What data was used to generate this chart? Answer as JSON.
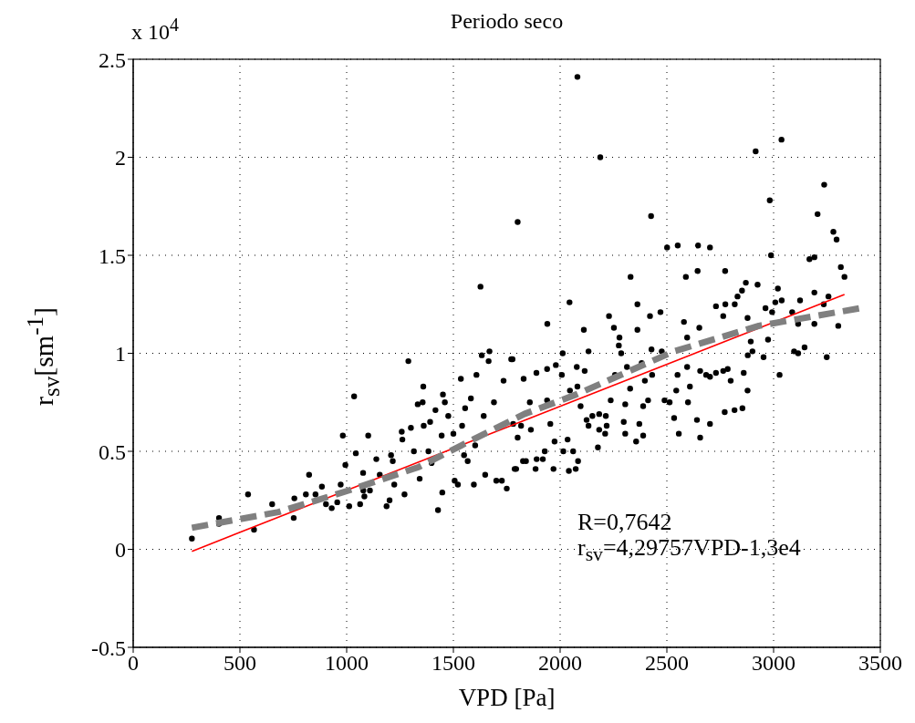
{
  "chart_data": {
    "type": "scatter",
    "title": "Periodo  seco",
    "xlabel": "VPD [Pa]",
    "ylabel": "r$_{sv}$[sm$^{-1}$]",
    "annotations": [
      "x 10$^{4}$",
      "R=0,7642",
      "r$_{sv}$=4,29757VPD-1,3e4"
    ],
    "xlim": [
      0,
      3500
    ],
    "xticks": [
      0,
      500,
      1000,
      1500,
      2000,
      2500,
      3000,
      3500
    ],
    "ylim": [
      -0.5,
      2.5
    ],
    "yticks": [
      -0.5,
      0,
      0.5,
      1,
      1.5,
      2,
      2.5
    ],
    "grid": true,
    "series": [
      {
        "type": "scatter",
        "marker": "circle",
        "color": "#000000",
        "x": [
          275,
          402,
          402,
          538,
          566,
          651,
          752,
          755,
          809,
          824,
          854,
          884,
          903,
          930,
          956,
          972,
          982,
          994,
          1012,
          1035,
          1043,
          1063,
          1077,
          1101,
          1083,
          1109,
          1139,
          1155,
          1187,
          1201,
          1208,
          1223,
          1258,
          1261,
          1271,
          1289,
          1301,
          1315,
          1333,
          1342,
          1356,
          1359,
          1361,
          1391,
          1398,
          1416,
          1428,
          1445,
          1451,
          1448,
          1460,
          1476,
          1500,
          1506,
          1521,
          1535,
          1541,
          1555,
          1567,
          1582,
          1596,
          1608,
          1627,
          1633,
          1642,
          1649,
          1665,
          1669,
          1690,
          1701,
          1727,
          1735,
          1750,
          1777,
          1801,
          1780,
          1787,
          1602,
          1550,
          1383,
          1216,
          1078,
          2081,
          2188,
          2426,
          2501,
          2551,
          2646,
          2702,
          2916,
          3037,
          2982,
          3237,
          3206,
          3280,
          3295,
          2988,
          3168,
          3191,
          3315,
          3332,
          2589,
          2644,
          2773,
          2330,
          2044,
          1940,
          2870,
          2925,
          2852,
          2831,
          3020,
          3008,
          3038,
          3124,
          3191,
          3257,
          3235,
          2962,
          2993,
          3087,
          3115,
          3191,
          3303,
          3096,
          3115,
          3145,
          3249,
          3028,
          2974,
          2953,
          2878,
          2860,
          2901,
          2893,
          2879,
          2878,
          2818,
          2764,
          2774,
          2730,
          2854,
          2817,
          2771,
          2785,
          2799,
          2764,
          2730,
          2702,
          2684,
          2656,
          2652,
          2702,
          2641,
          2656,
          2556,
          2599,
          2608,
          2580,
          2595,
          2595,
          2534,
          2544,
          2550,
          2513,
          2489,
          2476,
          2470,
          2421,
          2428,
          2431,
          2412,
          2389,
          2397,
          2362,
          2362,
          2382,
          2371,
          2389,
          2356,
          2328,
          2313,
          2305,
          2298,
          2305,
          2278,
          2275,
          2286,
          2252,
          2229,
          2257,
          2237,
          2214,
          2218,
          2211,
          2183,
          2183,
          2177,
          2151,
          2133,
          2124,
          2133,
          2111,
          2115,
          2096,
          2078,
          2081,
          2046,
          2084,
          2073,
          2041,
          2061,
          2015,
          2035,
          2008,
          2012,
          1980,
          1969,
          1974,
          1939,
          1928,
          1919,
          1889,
          1890,
          1885,
          1829,
          1840,
          1826,
          1794,
          1801,
          1858,
          1863,
          1939,
          1954,
          1817,
          1771
        ],
        "values": [
          0.055,
          0.16,
          0.13,
          0.28,
          0.1,
          0.23,
          0.16,
          0.26,
          0.28,
          0.38,
          0.28,
          0.32,
          0.23,
          0.21,
          0.24,
          0.33,
          0.58,
          0.43,
          0.22,
          0.78,
          0.49,
          0.23,
          0.39,
          0.58,
          0.27,
          0.3,
          0.46,
          0.38,
          0.22,
          0.25,
          0.48,
          0.33,
          0.6,
          0.56,
          0.28,
          0.96,
          0.62,
          0.5,
          0.74,
          0.36,
          0.75,
          0.83,
          0.63,
          0.65,
          0.44,
          0.71,
          0.2,
          0.58,
          0.79,
          0.29,
          0.75,
          0.68,
          0.59,
          0.35,
          0.33,
          0.87,
          0.63,
          0.72,
          0.45,
          0.77,
          0.33,
          0.89,
          1.34,
          0.99,
          0.68,
          0.38,
          0.96,
          1.01,
          0.75,
          0.35,
          0.35,
          0.86,
          0.31,
          0.97,
          1.67,
          0.64,
          0.41,
          0.53,
          0.48,
          0.5,
          0.45,
          0.3,
          2.41,
          2.0,
          1.7,
          1.54,
          1.55,
          1.55,
          1.54,
          2.03,
          2.09,
          1.78,
          1.86,
          1.71,
          1.62,
          1.58,
          1.5,
          1.48,
          1.49,
          1.44,
          1.39,
          1.39,
          1.42,
          1.42,
          1.39,
          1.26,
          1.15,
          1.36,
          1.35,
          1.32,
          1.29,
          1.33,
          1.26,
          1.27,
          1.27,
          1.31,
          1.29,
          1.25,
          1.23,
          1.21,
          1.21,
          1.15,
          1.15,
          1.14,
          1.01,
          1.0,
          1.03,
          0.98,
          0.89,
          1.07,
          0.98,
          0.81,
          0.9,
          1.01,
          1.06,
          0.99,
          1.18,
          1.25,
          1.19,
          1.25,
          1.24,
          0.72,
          0.71,
          0.7,
          0.92,
          0.86,
          0.91,
          0.9,
          0.88,
          0.89,
          0.91,
          1.13,
          0.64,
          0.66,
          0.57,
          0.59,
          0.75,
          0.83,
          1.16,
          1.08,
          0.93,
          0.67,
          0.81,
          0.89,
          0.75,
          0.76,
          1.01,
          1.21,
          1.19,
          1.02,
          0.89,
          0.76,
          0.73,
          0.86,
          1.25,
          1.12,
          0.95,
          0.64,
          0.58,
          0.55,
          0.82,
          0.93,
          0.74,
          0.65,
          0.59,
          1.08,
          1.04,
          1.0,
          1.13,
          1.19,
          0.89,
          0.76,
          0.68,
          0.63,
          0.59,
          0.69,
          0.61,
          0.52,
          0.68,
          0.63,
          0.66,
          1.01,
          1.12,
          0.91,
          0.73,
          0.93,
          0.83,
          0.81,
          0.45,
          0.41,
          0.4,
          0.5,
          0.5,
          0.56,
          0.89,
          1.0,
          0.94,
          0.41,
          0.55,
          0.92,
          0.5,
          0.46,
          0.9,
          0.46,
          0.41,
          0.87,
          0.45,
          0.45,
          0.41,
          0.57,
          0.75,
          0.61,
          0.76,
          0.64,
          0.63,
          0.97
        ]
      },
      {
        "type": "line",
        "marker": "none",
        "line_style": "solid",
        "color": "#ff0000",
        "x": [
          275,
          3332
        ],
        "values": [
          -0.01,
          1.3
        ]
      },
      {
        "type": "line",
        "marker": "none",
        "line_style": "dashed",
        "color": "#808080",
        "x": [
          275,
          680,
          1009,
          1338,
          1537,
          1832,
          2076,
          2534,
          2931,
          3405
        ],
        "values": [
          0.11,
          0.19,
          0.3,
          0.42,
          0.53,
          0.69,
          0.79,
          1.01,
          1.14,
          1.23
        ]
      }
    ]
  }
}
